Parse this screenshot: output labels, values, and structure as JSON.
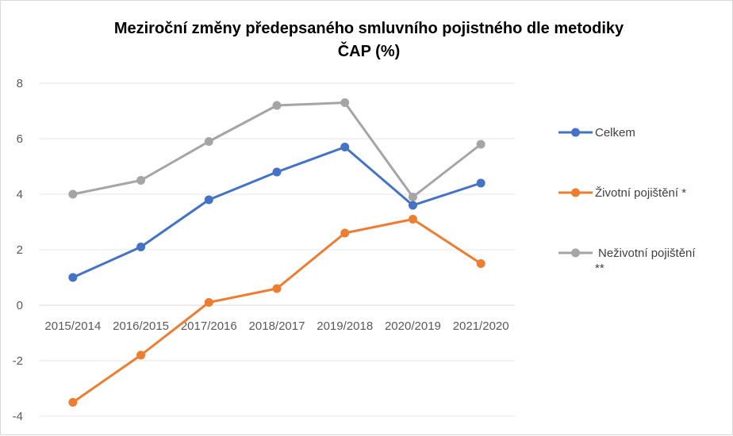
{
  "chart_data": {
    "type": "line",
    "title_lines": [
      "Meziroční změny předepsaného smluvního pojistného dle metodiky",
      "ČAP (%)"
    ],
    "categories": [
      "2015/2014",
      "2016/2015",
      "2017/2016",
      "2018/2017",
      "2019/2018",
      "2020/2019",
      "2021/2020"
    ],
    "ylim": [
      -4,
      8
    ],
    "yticks": [
      "8",
      "6",
      "4",
      "2",
      "0",
      "-2",
      "-4"
    ],
    "grid": true,
    "legend_position": "right",
    "series": [
      {
        "name": "Celkem",
        "color": "#4472C4",
        "values": [
          1.0,
          2.1,
          3.8,
          4.8,
          5.7,
          3.6,
          4.4
        ]
      },
      {
        "name": "Životní pojištění *",
        "color": "#ED7D31",
        "values": [
          -3.5,
          -1.8,
          0.1,
          0.6,
          2.6,
          3.1,
          1.5
        ]
      },
      {
        "name_lines": [
          "Neživotní pojištění",
          "**"
        ],
        "color": "#A5A5A5",
        "values": [
          4.0,
          4.5,
          5.9,
          7.2,
          7.3,
          3.9,
          5.8
        ]
      }
    ]
  }
}
